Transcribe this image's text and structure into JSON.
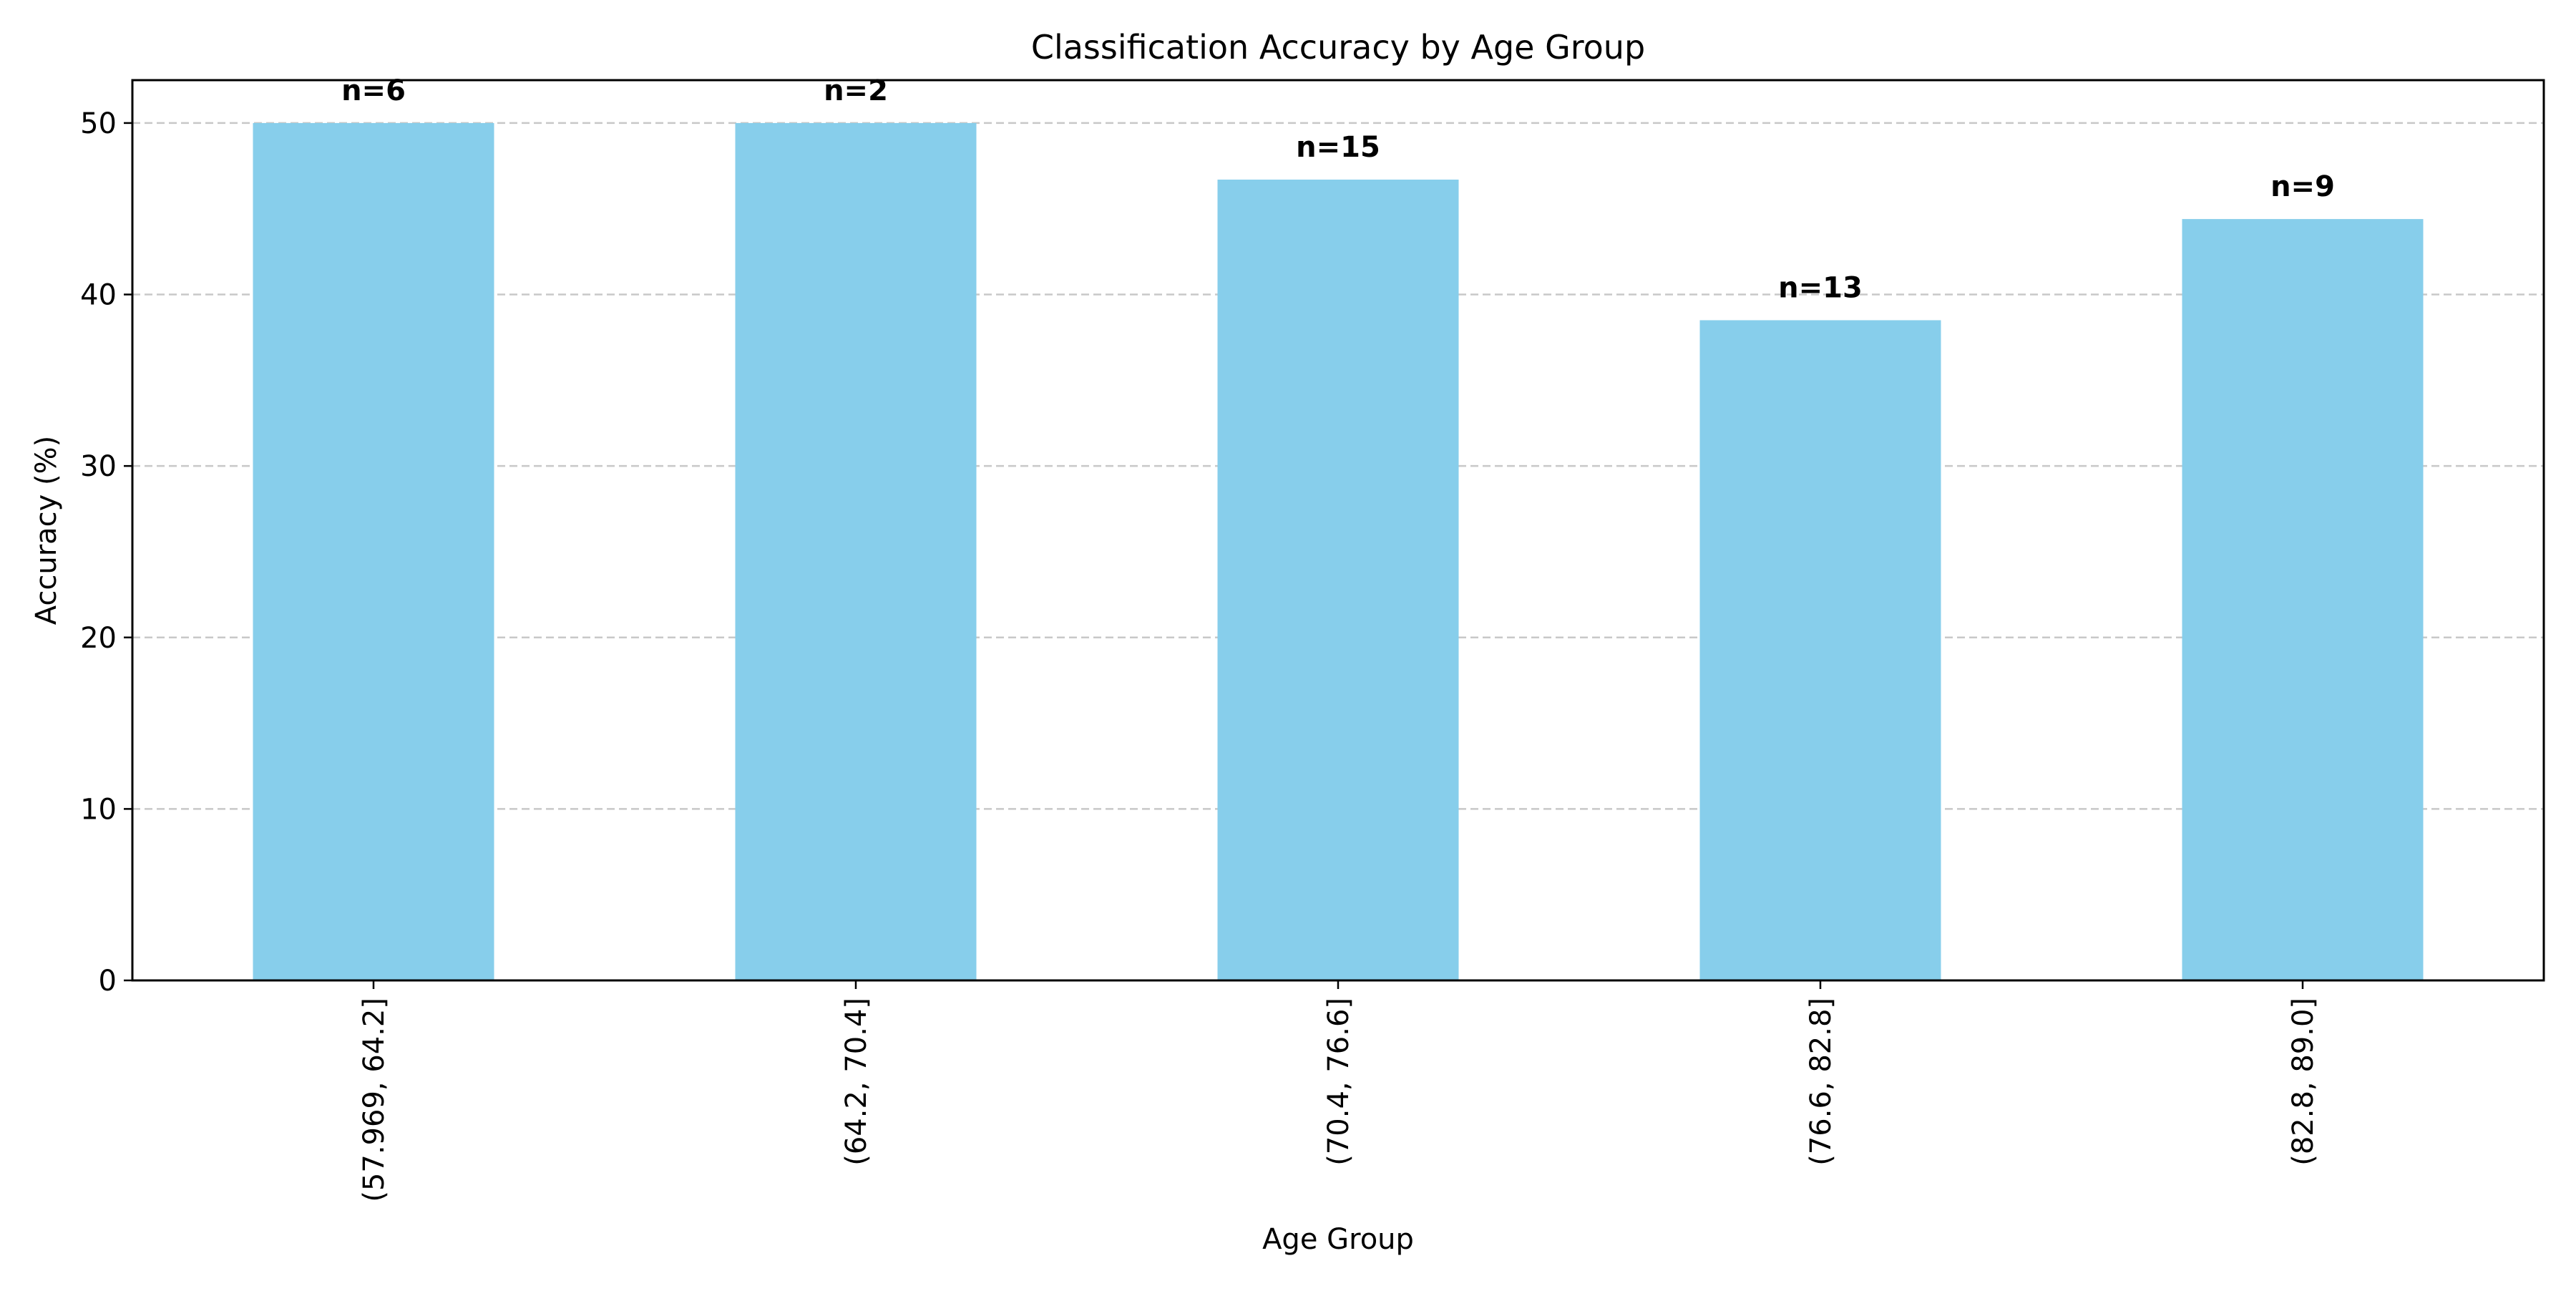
{
  "chart_data": {
    "type": "bar",
    "title": "Classification Accuracy by Age Group",
    "xlabel": "Age Group",
    "ylabel": "Accuracy (%)",
    "categories": [
      "(57.969, 64.2]",
      "(64.2, 70.4]",
      "(70.4, 76.6]",
      "(76.6, 82.8]",
      "(82.8, 89.0]"
    ],
    "values": [
      50.0,
      50.0,
      46.7,
      38.5,
      44.4
    ],
    "bar_labels": [
      "n=6",
      "n=2",
      "n=15",
      "n=13",
      "n=9"
    ],
    "ylim": [
      0,
      52.5
    ],
    "yticks": [
      0,
      10,
      20,
      30,
      40,
      50
    ],
    "grid": "y-dashed",
    "legend": "none",
    "x_tick_rotation": "vertical",
    "bar_color": "#87CEEB",
    "grid_color": "#c8c8c8",
    "axis_color": "#000000"
  }
}
